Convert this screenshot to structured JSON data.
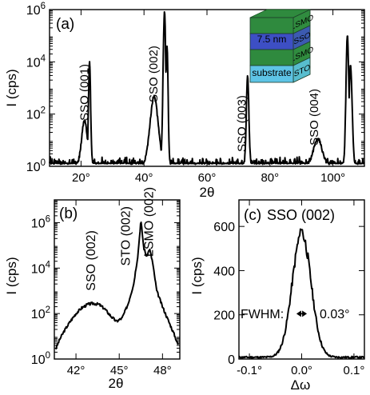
{
  "chart_data": [
    {
      "id": "a",
      "type": "line",
      "panel_label": "(a)",
      "xlabel": "2θ",
      "ylabel": "I (cps)",
      "xlim": [
        10,
        110
      ],
      "ylim_log10": [
        0,
        6
      ],
      "ylog": true,
      "xticks": [
        20,
        40,
        60,
        80,
        100
      ],
      "xtick_labels": [
        "20°",
        "40°",
        "60°",
        "80°",
        "100°"
      ],
      "yticks_log10": [
        0,
        2,
        4,
        6
      ],
      "ytick_labels": [
        {
          "base": "10",
          "exp": "0"
        },
        {
          "base": "10",
          "exp": "2"
        },
        {
          "base": "10",
          "exp": "4"
        },
        {
          "base": "10",
          "exp": "6"
        }
      ],
      "annotations": [
        {
          "text": "SSO (001)",
          "x": 21,
          "ylog": 1.75
        },
        {
          "text": "SSO (002)",
          "x": 43,
          "ylog": 2.45
        },
        {
          "text": "SSO (003)",
          "x": 71,
          "ylog": 0.55
        },
        {
          "text": "SSO (004)",
          "x": 94,
          "ylog": 0.8
        }
      ],
      "noise_log10": 0.25,
      "peaks": [
        {
          "x": 21.1,
          "ylog": 1.7,
          "w": 0.9
        },
        {
          "x": 22.7,
          "ylog": 3.9,
          "w": 0.35
        },
        {
          "x": 43.2,
          "ylog": 2.6,
          "w": 1.3
        },
        {
          "x": 46.5,
          "ylog": 5.9,
          "w": 0.45
        },
        {
          "x": 47.3,
          "ylog": 4.6,
          "w": 0.35
        },
        {
          "x": 72.9,
          "ylog": 3.4,
          "w": 0.4
        },
        {
          "x": 95.2,
          "ylog": 1.0,
          "w": 1.3
        },
        {
          "x": 104.6,
          "ylog": 5.0,
          "w": 0.45
        },
        {
          "x": 105.6,
          "ylog": 3.8,
          "w": 0.5
        }
      ],
      "inset": {
        "layers": [
          {
            "label": "LSMO",
            "color": "#2f8a3e",
            "thickness": "7.5 nm"
          },
          {
            "label": "SSO",
            "color": "#3d4fc4",
            "thickness": "7.5 nm"
          },
          {
            "label": "LSMO",
            "color": "#2f8a3e",
            "thickness": "7.5 nm"
          },
          {
            "label": "STO",
            "color": "#5ec4e6",
            "thickness": "substrate"
          }
        ],
        "shown_thickness": "7.5 nm",
        "substrate_label": "substrate"
      }
    },
    {
      "id": "b",
      "type": "line",
      "panel_label": "(b)",
      "xlabel": "2θ",
      "ylabel": "I (cps)",
      "xlim": [
        40.5,
        49.2
      ],
      "ylim_log10": [
        0,
        7
      ],
      "ylog": true,
      "xticks": [
        42,
        45,
        48
      ],
      "xtick_labels": [
        "42°",
        "45°",
        "48°"
      ],
      "yticks_log10": [
        0,
        2,
        4,
        6
      ],
      "ytick_labels": [
        {
          "base": "10",
          "exp": "0"
        },
        {
          "base": "10",
          "exp": "2"
        },
        {
          "base": "10",
          "exp": "4"
        },
        {
          "base": "10",
          "exp": "6"
        }
      ],
      "annotations": [
        {
          "text": "SSO (002)",
          "x": 43.0,
          "ylog": 3.0
        },
        {
          "text": "STO (002)",
          "x": 45.4,
          "ylog": 4.1
        },
        {
          "text": "LSMO (002)",
          "x": 47.0,
          "ylog": 4.5
        }
      ],
      "points": [
        [
          40.6,
          0.45
        ],
        [
          40.9,
          0.9
        ],
        [
          41.2,
          1.25
        ],
        [
          41.6,
          1.65
        ],
        [
          42.0,
          2.0
        ],
        [
          42.4,
          2.25
        ],
        [
          42.8,
          2.4
        ],
        [
          43.2,
          2.45
        ],
        [
          43.6,
          2.4
        ],
        [
          44.0,
          2.2
        ],
        [
          44.4,
          1.9
        ],
        [
          44.8,
          1.65
        ],
        [
          45.2,
          1.8
        ],
        [
          45.6,
          2.4
        ],
        [
          46.0,
          3.3
        ],
        [
          46.3,
          4.6
        ],
        [
          46.5,
          6.1
        ],
        [
          46.7,
          4.9
        ],
        [
          46.9,
          4.5
        ],
        [
          47.1,
          4.85
        ],
        [
          47.3,
          4.3
        ],
        [
          47.6,
          3.0
        ],
        [
          48.0,
          2.3
        ],
        [
          48.4,
          1.7
        ],
        [
          48.8,
          1.1
        ],
        [
          49.1,
          0.6
        ]
      ]
    },
    {
      "id": "c",
      "type": "line",
      "panel_label": "(c)",
      "title": "SSO (002)",
      "xlabel": "Δω",
      "ylabel": "I (cps)",
      "xlim": [
        -0.12,
        0.12
      ],
      "ylim": [
        0,
        720
      ],
      "ylog": false,
      "xticks": [
        -0.1,
        0.0,
        0.1
      ],
      "xtick_labels": [
        "-0.1°",
        "0.0°",
        "0.1°"
      ],
      "yticks": [
        0,
        200,
        400,
        600
      ],
      "ytick_labels": [
        "0",
        "200",
        "400",
        "600"
      ],
      "fwhm_label": "FWHM:",
      "fwhm_value": "0.03°",
      "fwhm_y": 205,
      "peak": {
        "center": 0.0,
        "amplitude": 560,
        "width": 0.018,
        "baseline": 8,
        "top": 585
      }
    }
  ]
}
